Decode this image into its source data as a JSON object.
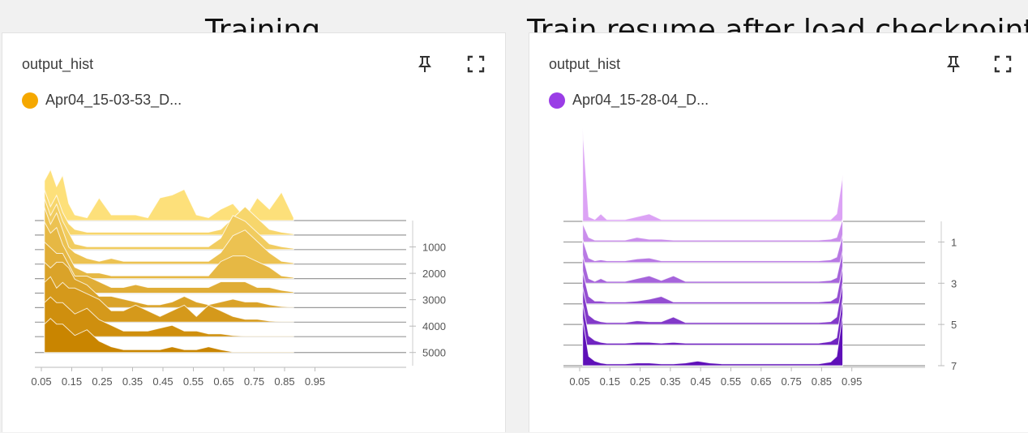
{
  "headings": {
    "left": "Training",
    "right": "Train resume after load checkpoint"
  },
  "icons": {
    "pin": "pin-icon",
    "expand": "fullscreen-icon"
  },
  "chart_data": [
    {
      "type": "histogram",
      "title": "output_hist",
      "legend": [
        {
          "name": "Apr04_15-03-53_D...",
          "color": "#f5a800"
        }
      ],
      "x_ticks": [
        "0.05",
        "0.15",
        "0.25",
        "0.35",
        "0.45",
        "0.55",
        "0.65",
        "0.75",
        "0.85",
        "0.95"
      ],
      "y_ticks": [
        "1000",
        "2000",
        "3000",
        "4000",
        "5000"
      ],
      "xlim": [
        0.05,
        0.95
      ],
      "step_range": [
        0,
        5500
      ],
      "color_light": "#fde07a",
      "color_dark": "#c98500",
      "bins": [
        0.06,
        0.08,
        0.1,
        0.12,
        0.14,
        0.16,
        0.2,
        0.24,
        0.28,
        0.32,
        0.36,
        0.4,
        0.44,
        0.48,
        0.52,
        0.56,
        0.6,
        0.64,
        0.68,
        0.72,
        0.76,
        0.8,
        0.84,
        0.88
      ],
      "series": [
        {
          "step": 0,
          "values": [
            0.7,
            0.9,
            0.6,
            0.8,
            0.3,
            0.1,
            0.05,
            0.4,
            0.1,
            0.1,
            0.1,
            0.05,
            0.4,
            0.45,
            0.55,
            0.1,
            0.05,
            0.2,
            0.3,
            0.05,
            0.4,
            0.2,
            0.5,
            0.05
          ]
        },
        {
          "step": 550,
          "values": [
            0.8,
            0.5,
            0.7,
            0.4,
            0.2,
            0.1,
            0.05,
            0.05,
            0.05,
            0.05,
            0.05,
            0.05,
            0.05,
            0.05,
            0.05,
            0.05,
            0.05,
            0.1,
            0.3,
            0.5,
            0.3,
            0.1,
            0.05,
            0.02
          ]
        },
        {
          "step": 1100,
          "values": [
            0.9,
            0.6,
            0.8,
            0.5,
            0.3,
            0.1,
            0.05,
            0.05,
            0.05,
            0.05,
            0.05,
            0.05,
            0.05,
            0.05,
            0.05,
            0.05,
            0.05,
            0.2,
            0.6,
            0.5,
            0.3,
            0.1,
            0.05,
            0.02
          ]
        },
        {
          "step": 1650,
          "values": [
            1.0,
            0.7,
            0.9,
            0.6,
            0.3,
            0.2,
            0.1,
            0.05,
            0.1,
            0.05,
            0.05,
            0.05,
            0.05,
            0.05,
            0.05,
            0.05,
            0.05,
            0.2,
            0.5,
            0.6,
            0.4,
            0.2,
            0.05,
            0.02
          ]
        },
        {
          "step": 2200,
          "values": [
            1.0,
            0.8,
            0.9,
            0.6,
            0.4,
            0.2,
            0.1,
            0.1,
            0.05,
            0.05,
            0.05,
            0.05,
            0.05,
            0.05,
            0.05,
            0.05,
            0.05,
            0.3,
            0.4,
            0.4,
            0.3,
            0.2,
            0.05,
            0.02
          ]
        },
        {
          "step": 2750,
          "values": [
            0.9,
            0.8,
            0.7,
            0.7,
            0.5,
            0.3,
            0.3,
            0.2,
            0.1,
            0.1,
            0.15,
            0.1,
            0.1,
            0.1,
            0.1,
            0.1,
            0.1,
            0.2,
            0.2,
            0.2,
            0.1,
            0.1,
            0.05,
            0.02
          ]
        },
        {
          "step": 3300,
          "values": [
            0.8,
            0.7,
            0.8,
            0.8,
            0.7,
            0.5,
            0.4,
            0.2,
            0.2,
            0.15,
            0.1,
            0.05,
            0.05,
            0.1,
            0.2,
            0.1,
            0.05,
            0.1,
            0.15,
            0.1,
            0.1,
            0.05,
            0.02,
            0.01
          ]
        },
        {
          "step": 3850,
          "values": [
            0.7,
            0.8,
            0.6,
            0.7,
            0.6,
            0.6,
            0.5,
            0.4,
            0.2,
            0.2,
            0.3,
            0.2,
            0.1,
            0.2,
            0.3,
            0.1,
            0.3,
            0.2,
            0.1,
            0.05,
            0.05,
            0.02,
            0.01,
            0.01
          ]
        },
        {
          "step": 4400,
          "values": [
            0.6,
            0.7,
            0.6,
            0.6,
            0.5,
            0.4,
            0.5,
            0.3,
            0.2,
            0.1,
            0.1,
            0.1,
            0.15,
            0.2,
            0.1,
            0.1,
            0.05,
            0.05,
            0.02,
            0.01,
            0.01,
            0.01,
            0.01,
            0.01
          ]
        },
        {
          "step": 5000,
          "values": [
            0.5,
            0.6,
            0.5,
            0.5,
            0.4,
            0.3,
            0.4,
            0.2,
            0.1,
            0.05,
            0.05,
            0.05,
            0.05,
            0.1,
            0.05,
            0.05,
            0.1,
            0.05,
            0.01,
            0.01,
            0.01,
            0.01,
            0.01,
            0.01
          ]
        }
      ]
    },
    {
      "type": "histogram",
      "title": "output_hist",
      "legend": [
        {
          "name": "Apr04_15-28-04_D...",
          "color": "#9a3de6"
        }
      ],
      "x_ticks": [
        "0.05",
        "0.15",
        "0.25",
        "0.35",
        "0.45",
        "0.55",
        "0.65",
        "0.75",
        "0.85",
        "0.95"
      ],
      "y_ticks": [
        "1",
        "3",
        "5",
        "7"
      ],
      "xlim": [
        0.05,
        0.95
      ],
      "step_range": [
        0,
        7
      ],
      "color_light": "#dca3f5",
      "color_dark": "#5e0fb8",
      "bins": [
        0.06,
        0.08,
        0.1,
        0.12,
        0.14,
        0.16,
        0.2,
        0.24,
        0.28,
        0.32,
        0.36,
        0.4,
        0.44,
        0.48,
        0.52,
        0.56,
        0.6,
        0.64,
        0.68,
        0.72,
        0.76,
        0.8,
        0.84,
        0.88,
        0.9,
        0.92
      ],
      "series": [
        {
          "step": 0,
          "values": [
            1.0,
            0.05,
            0.02,
            0.08,
            0.02,
            0.02,
            0.02,
            0.05,
            0.08,
            0.02,
            0.02,
            0.02,
            0.02,
            0.02,
            0.02,
            0.02,
            0.02,
            0.02,
            0.02,
            0.02,
            0.02,
            0.02,
            0.02,
            0.02,
            0.08,
            0.5
          ]
        },
        {
          "step": 1,
          "values": [
            0.2,
            0.05,
            0.02,
            0.02,
            0.02,
            0.02,
            0.02,
            0.05,
            0.03,
            0.03,
            0.02,
            0.02,
            0.02,
            0.02,
            0.02,
            0.02,
            0.02,
            0.02,
            0.02,
            0.02,
            0.02,
            0.02,
            0.02,
            0.03,
            0.05,
            0.25
          ]
        },
        {
          "step": 2,
          "values": [
            0.25,
            0.05,
            0.02,
            0.03,
            0.02,
            0.02,
            0.02,
            0.04,
            0.05,
            0.02,
            0.02,
            0.02,
            0.02,
            0.02,
            0.02,
            0.02,
            0.02,
            0.02,
            0.02,
            0.02,
            0.02,
            0.02,
            0.02,
            0.03,
            0.06,
            0.3
          ]
        },
        {
          "step": 3,
          "values": [
            0.3,
            0.05,
            0.02,
            0.05,
            0.02,
            0.02,
            0.02,
            0.05,
            0.08,
            0.03,
            0.08,
            0.02,
            0.02,
            0.02,
            0.02,
            0.02,
            0.02,
            0.02,
            0.02,
            0.02,
            0.02,
            0.02,
            0.02,
            0.03,
            0.06,
            0.35
          ]
        },
        {
          "step": 4,
          "values": [
            0.35,
            0.08,
            0.03,
            0.03,
            0.02,
            0.02,
            0.02,
            0.03,
            0.05,
            0.08,
            0.02,
            0.02,
            0.02,
            0.02,
            0.02,
            0.02,
            0.02,
            0.02,
            0.02,
            0.02,
            0.02,
            0.02,
            0.02,
            0.03,
            0.07,
            0.4
          ]
        },
        {
          "step": 5,
          "values": [
            0.4,
            0.1,
            0.05,
            0.03,
            0.02,
            0.02,
            0.02,
            0.04,
            0.03,
            0.03,
            0.08,
            0.02,
            0.02,
            0.02,
            0.02,
            0.02,
            0.02,
            0.02,
            0.02,
            0.02,
            0.02,
            0.02,
            0.02,
            0.03,
            0.08,
            0.45
          ]
        },
        {
          "step": 6,
          "values": [
            0.45,
            0.1,
            0.05,
            0.03,
            0.02,
            0.02,
            0.02,
            0.03,
            0.03,
            0.02,
            0.03,
            0.02,
            0.02,
            0.02,
            0.02,
            0.02,
            0.02,
            0.02,
            0.02,
            0.02,
            0.02,
            0.02,
            0.02,
            0.04,
            0.08,
            0.5
          ]
        },
        {
          "step": 7,
          "values": [
            0.5,
            0.1,
            0.05,
            0.03,
            0.02,
            0.02,
            0.02,
            0.03,
            0.03,
            0.02,
            0.02,
            0.03,
            0.05,
            0.03,
            0.02,
            0.02,
            0.02,
            0.02,
            0.02,
            0.02,
            0.02,
            0.02,
            0.02,
            0.04,
            0.1,
            0.55
          ]
        }
      ]
    }
  ]
}
